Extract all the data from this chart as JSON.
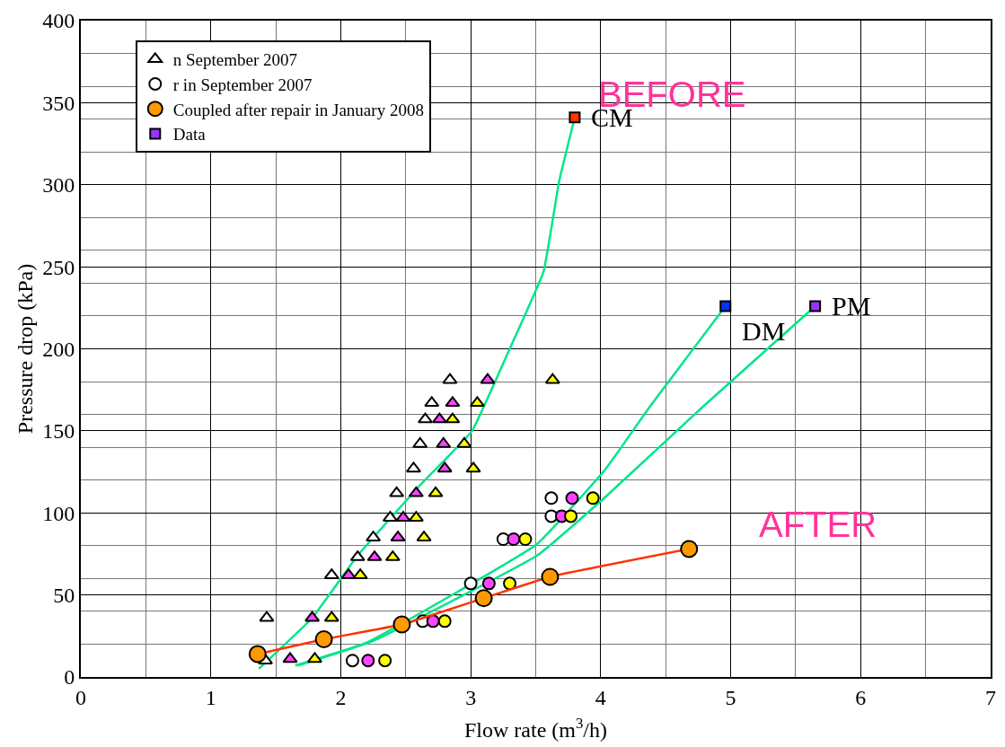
{
  "chart_data": {
    "type": "scatter",
    "xlabel": "Flow rate (m$^{3}$/h)",
    "ylabel": "Pressure drop (kPa)",
    "xlim": [
      0,
      7
    ],
    "ylim": [
      0,
      400
    ],
    "xticks": [
      0,
      1,
      2,
      3,
      4,
      5,
      6,
      7
    ],
    "yticks": [
      0,
      50,
      100,
      150,
      200,
      250,
      300,
      350,
      400
    ],
    "grid": true,
    "legend": "top left",
    "series": [
      {
        "type": "line",
        "color": "#00e68a",
        "marker": "none",
        "x": [
          1.37,
          1.78,
          2.13,
          2.6,
          3.01,
          3.3,
          3.56,
          3.68,
          3.8
        ],
        "values": [
          5,
          36,
          74,
          116,
          150,
          200,
          247,
          302,
          341
        ]
      },
      {
        "type": "line",
        "color": "#00e68a",
        "marker": "none",
        "x": [
          1.65,
          2.2,
          3.51,
          4.04,
          4.38,
          4.96
        ],
        "values": [
          7,
          21,
          81,
          127,
          165,
          226
        ]
      },
      {
        "type": "line",
        "color": "#00e68a",
        "marker": "none",
        "x": [
          1.67,
          2.25,
          3.51,
          4.04,
          4.79,
          5.65
        ],
        "values": [
          7,
          22,
          74,
          110,
          165,
          226
        ]
      },
      {
        "name": "n September 2007",
        "marker": "triangle",
        "color": "#ffffff",
        "x": [
          1.42,
          1.43,
          1.93,
          2.13,
          2.25,
          2.38,
          2.43,
          2.56,
          2.61,
          2.65,
          2.7,
          2.84
        ],
        "values": [
          10,
          36,
          62,
          73,
          85,
          97,
          112,
          127,
          142,
          157,
          167,
          181
        ]
      },
      {
        "marker": "triangle",
        "color": "#ff44ff",
        "x": [
          1.61,
          1.78,
          2.06,
          2.26,
          2.44,
          2.48,
          2.58,
          2.8,
          2.79,
          2.76,
          2.86,
          3.13
        ],
        "values": [
          11,
          36,
          62,
          73,
          85,
          97,
          112,
          127,
          142,
          157,
          167,
          181
        ]
      },
      {
        "marker": "triangle",
        "color": "#ffff00",
        "x": [
          1.8,
          1.93,
          2.15,
          2.4,
          2.64,
          2.58,
          2.73,
          3.02,
          2.95,
          2.86,
          3.05,
          3.63
        ],
        "values": [
          11,
          36,
          62,
          73,
          85,
          97,
          112,
          127,
          142,
          157,
          167,
          181
        ]
      },
      {
        "name": "r in September 2007",
        "marker": "circle",
        "color": "#ffffff",
        "x": [
          2.09,
          2.63,
          3.0,
          3.25,
          3.62,
          3.62
        ],
        "values": [
          10,
          34,
          57,
          84,
          98,
          109
        ]
      },
      {
        "marker": "circle",
        "color": "#ff44ff",
        "x": [
          2.21,
          2.71,
          3.14,
          3.33,
          3.7,
          3.78
        ],
        "values": [
          10,
          34,
          57,
          84,
          98,
          109
        ]
      },
      {
        "marker": "circle",
        "color": "#ffff00",
        "x": [
          2.34,
          2.8,
          3.3,
          3.42,
          3.77,
          3.94
        ],
        "values": [
          10,
          34,
          57,
          84,
          98,
          109
        ]
      },
      {
        "type": "line",
        "color": "#ff3300",
        "marker": "none",
        "x": [
          1.36,
          1.87,
          2.47,
          3.1,
          3.61,
          4.68
        ],
        "values": [
          14,
          23,
          32,
          48,
          61,
          78
        ]
      },
      {
        "name": "Coupled after repair in January 2008",
        "marker": "circle",
        "color": "#ff9900",
        "x": [
          1.36,
          1.87,
          2.47,
          3.1,
          3.61,
          4.68
        ],
        "values": [
          14,
          23,
          32,
          48,
          61,
          78
        ]
      },
      {
        "marker": "square",
        "color": "#ff3300",
        "x": [
          3.8
        ],
        "values": [
          341
        ]
      },
      {
        "marker": "square",
        "color": "#0033ff",
        "x": [
          4.96
        ],
        "values": [
          226
        ]
      },
      {
        "name": "Data",
        "marker": "square",
        "color": "#9933ff",
        "x": [
          5.65
        ],
        "values": [
          226
        ]
      }
    ],
    "annotations": [
      {
        "text": "CM",
        "x": 3.8,
        "y": 341
      },
      {
        "text": "DM",
        "x": 4.96,
        "y": 226
      },
      {
        "text": "PM",
        "x": 5.65,
        "y": 226
      },
      "BEFORE",
      "AFTER"
    ]
  }
}
